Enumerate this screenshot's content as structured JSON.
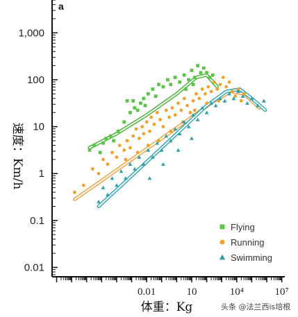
{
  "chart_data": {
    "type": "scatter",
    "panel_label": "a",
    "title": "",
    "xlabel": "体重：Kg",
    "ylabel": "速度：Km/h",
    "x_scale": "log",
    "y_scale": "log",
    "xlim_log10": [
      -8.3,
      7.2
    ],
    "ylim_log10": [
      -2.2,
      3.7
    ],
    "x_ticks": [
      {
        "value_log10": -2,
        "label": "0.01"
      },
      {
        "value_log10": 1,
        "label": "10"
      },
      {
        "value_log10": 4,
        "label": "10⁴"
      },
      {
        "value_log10": 7,
        "label": "10⁷"
      }
    ],
    "y_ticks": [
      {
        "value_log10": 3,
        "label": "1,000"
      },
      {
        "value_log10": 2,
        "label": "100"
      },
      {
        "value_log10": 1,
        "label": "10"
      },
      {
        "value_log10": 0,
        "label": "1"
      },
      {
        "value_log10": -1,
        "label": "0.1"
      },
      {
        "value_log10": -2,
        "label": "0.01"
      }
    ],
    "legend_position": "bottom-right",
    "series": [
      {
        "name": "Flying",
        "color": "#5cc44a",
        "marker": "square",
        "fit_color": "#4bb33a",
        "fit_log10": [
          [
            -5.8,
            0.55
          ],
          [
            -4,
            0.85
          ],
          [
            -2,
            1.25
          ],
          [
            0,
            1.7
          ],
          [
            1.3,
            2.05
          ],
          [
            2.0,
            2.1
          ],
          [
            2.7,
            1.85
          ]
        ],
        "points_log10": [
          [
            -5.8,
            0.5
          ],
          [
            -5.5,
            0.6
          ],
          [
            -5.1,
            0.45
          ],
          [
            -4.9,
            0.65
          ],
          [
            -4.7,
            0.75
          ],
          [
            -4.4,
            0.8
          ],
          [
            -4.2,
            0.7
          ],
          [
            -3.9,
            0.9
          ],
          [
            -3.5,
            1.1
          ],
          [
            -3.3,
            1.55
          ],
          [
            -3.1,
            1.3
          ],
          [
            -2.9,
            1.55
          ],
          [
            -2.8,
            1.4
          ],
          [
            -2.6,
            1.35
          ],
          [
            -2.4,
            1.5
          ],
          [
            -2.2,
            1.6
          ],
          [
            -2.1,
            1.45
          ],
          [
            -1.9,
            1.7
          ],
          [
            -1.6,
            1.8
          ],
          [
            -1.4,
            1.65
          ],
          [
            -1.2,
            1.9
          ],
          [
            -0.9,
            1.85
          ],
          [
            -0.6,
            2.0
          ],
          [
            -0.4,
            1.9
          ],
          [
            -0.1,
            2.05
          ],
          [
            0.2,
            1.95
          ],
          [
            0.5,
            2.1
          ],
          [
            0.8,
            2.0
          ],
          [
            1.0,
            2.2
          ],
          [
            1.2,
            2.05
          ],
          [
            1.4,
            2.3
          ],
          [
            1.6,
            2.15
          ],
          [
            1.8,
            2.25
          ],
          [
            2.0,
            2.15
          ],
          [
            2.2,
            2.05
          ],
          [
            2.4,
            2.1
          ],
          [
            1.1,
            1.9
          ],
          [
            0.6,
            1.8
          ]
        ]
      },
      {
        "name": "Running",
        "color": "#f0a02c",
        "marker": "circle",
        "fit_color": "#eaa64a",
        "fit_log10": [
          [
            -6.8,
            -0.55
          ],
          [
            -5,
            -0.15
          ],
          [
            -3,
            0.3
          ],
          [
            -1,
            0.75
          ],
          [
            1,
            1.2
          ],
          [
            2.5,
            1.55
          ],
          [
            3.6,
            1.75
          ],
          [
            4.5,
            1.7
          ],
          [
            5.5,
            1.4
          ]
        ],
        "points_log10": [
          [
            -6.8,
            -0.4
          ],
          [
            -6.2,
            -0.25
          ],
          [
            -5.6,
            0.1
          ],
          [
            -5.2,
            0.0
          ],
          [
            -4.9,
            0.3
          ],
          [
            -4.6,
            0.2
          ],
          [
            -4.3,
            0.45
          ],
          [
            -4.0,
            0.35
          ],
          [
            -3.8,
            0.6
          ],
          [
            -3.5,
            0.5
          ],
          [
            -3.3,
            0.7
          ],
          [
            -3.1,
            0.55
          ],
          [
            -2.9,
            0.8
          ],
          [
            -2.7,
            0.95
          ],
          [
            -2.5,
            0.75
          ],
          [
            -2.3,
            1.0
          ],
          [
            -2.2,
            0.85
          ],
          [
            -2.0,
            1.1
          ],
          [
            -1.8,
            0.9
          ],
          [
            -1.7,
            1.2
          ],
          [
            -1.5,
            1.05
          ],
          [
            -1.3,
            1.3
          ],
          [
            -1.1,
            1.15
          ],
          [
            -0.9,
            1.0
          ],
          [
            -0.7,
            1.35
          ],
          [
            -0.5,
            1.2
          ],
          [
            -0.3,
            1.4
          ],
          [
            -0.1,
            1.25
          ],
          [
            0.1,
            1.5
          ],
          [
            0.3,
            1.35
          ],
          [
            0.5,
            1.6
          ],
          [
            0.7,
            1.45
          ],
          [
            0.9,
            1.3
          ],
          [
            1.1,
            1.55
          ],
          [
            1.3,
            1.7
          ],
          [
            1.5,
            1.6
          ],
          [
            1.7,
            1.8
          ],
          [
            1.9,
            1.7
          ],
          [
            2.1,
            1.85
          ],
          [
            2.3,
            1.75
          ],
          [
            2.5,
            1.95
          ],
          [
            2.7,
            1.8
          ],
          [
            2.9,
            1.9
          ],
          [
            3.1,
            2.05
          ],
          [
            3.3,
            1.85
          ],
          [
            3.5,
            1.95
          ],
          [
            3.7,
            1.75
          ],
          [
            3.9,
            1.65
          ],
          [
            4.1,
            1.8
          ],
          [
            4.3,
            1.55
          ],
          [
            4.5,
            1.7
          ],
          [
            -3.4,
            0.3
          ],
          [
            -2.6,
            0.45
          ],
          [
            -1.9,
            0.6
          ],
          [
            -1.2,
            0.7
          ],
          [
            -0.4,
            0.9
          ],
          [
            0.4,
            1.1
          ],
          [
            1.2,
            1.35
          ],
          [
            2.0,
            1.5
          ],
          [
            2.8,
            1.55
          ]
        ]
      },
      {
        "name": "Swimming",
        "color": "#2f9fa8",
        "marker": "triangle",
        "fit_color": "#3aa6b0",
        "fit_log10": [
          [
            -5.2,
            -0.7
          ],
          [
            -3.5,
            -0.2
          ],
          [
            -1.5,
            0.4
          ],
          [
            0.5,
            1.0
          ],
          [
            2.0,
            1.45
          ],
          [
            3.3,
            1.75
          ],
          [
            4.2,
            1.8
          ],
          [
            5.0,
            1.6
          ],
          [
            5.9,
            1.35
          ]
        ],
        "points_log10": [
          [
            -5.2,
            -0.6
          ],
          [
            -4.9,
            -0.3
          ],
          [
            -4.6,
            -0.45
          ],
          [
            -4.3,
            -0.1
          ],
          [
            -4.0,
            -0.25
          ],
          [
            -3.7,
            0.05
          ],
          [
            -3.4,
            -0.1
          ],
          [
            -3.1,
            0.2
          ],
          [
            -2.8,
            0.1
          ],
          [
            -2.5,
            0.35
          ],
          [
            -2.2,
            0.2
          ],
          [
            -1.9,
            0.5
          ],
          [
            -1.6,
            0.35
          ],
          [
            -1.3,
            0.65
          ],
          [
            -1.0,
            0.5
          ],
          [
            -0.7,
            0.8
          ],
          [
            -0.4,
            0.7
          ],
          [
            -0.1,
            0.95
          ],
          [
            0.2,
            0.85
          ],
          [
            0.5,
            1.1
          ],
          [
            0.8,
            1.0
          ],
          [
            1.1,
            1.25
          ],
          [
            1.4,
            1.15
          ],
          [
            1.7,
            1.4
          ],
          [
            2.0,
            1.3
          ],
          [
            2.3,
            1.5
          ],
          [
            2.6,
            1.45
          ],
          [
            2.9,
            1.6
          ],
          [
            3.2,
            1.55
          ],
          [
            3.5,
            1.7
          ],
          [
            3.8,
            1.6
          ],
          [
            4.1,
            1.75
          ],
          [
            4.4,
            1.65
          ],
          [
            4.7,
            1.5
          ],
          [
            5.0,
            1.6
          ],
          [
            5.4,
            1.45
          ],
          [
            5.8,
            1.55
          ],
          [
            -1.8,
            -0.1
          ],
          [
            -0.9,
            0.2
          ],
          [
            0.1,
            0.5
          ],
          [
            1.0,
            0.75
          ]
        ]
      }
    ]
  },
  "watermark": "头条 @法兰西is培根"
}
